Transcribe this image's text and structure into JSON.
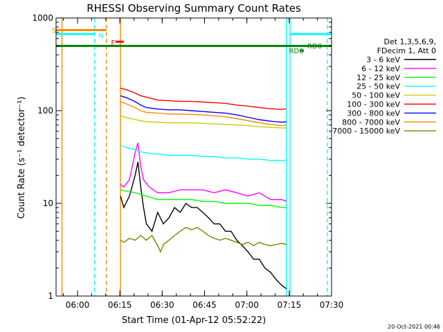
{
  "chart_data": {
    "type": "line",
    "title": "RHESSI Observing Summary Count Rates",
    "xlabel": "Start Time (01-Apr-12 05:52:22)",
    "ylabel": "Count Rate (s⁻¹ detector⁻¹)",
    "yscale": "log",
    "ylim": [
      1,
      1000
    ],
    "xlim_minutes": [
      0,
      97.6
    ],
    "x_ticks": [
      {
        "label": "06:00",
        "t": 7.6
      },
      {
        "label": "06:15",
        "t": 22.6
      },
      {
        "label": "06:30",
        "t": 37.6
      },
      {
        "label": "06:45",
        "t": 52.6
      },
      {
        "label": "07:00",
        "t": 67.6
      },
      {
        "label": "07:15",
        "t": 82.6
      },
      {
        "label": "07:30",
        "t": 97.6
      }
    ],
    "y_ticks": [
      {
        "label": "1",
        "v": 1
      },
      {
        "label": "10",
        "v": 10
      },
      {
        "label": "100",
        "v": 100
      },
      {
        "label": "1000",
        "v": 1000
      }
    ],
    "legend_header": [
      "Det 1,3,5,6,9,",
      "FDecim 1, Att 0"
    ],
    "series": [
      {
        "name": "3 - 6 keV",
        "color": "#000000",
        "points": [
          [
            22.8,
            12
          ],
          [
            24,
            9
          ],
          [
            26,
            12
          ],
          [
            28,
            20
          ],
          [
            29,
            28
          ],
          [
            30,
            15
          ],
          [
            31,
            9
          ],
          [
            32,
            6
          ],
          [
            34,
            5
          ],
          [
            36,
            8
          ],
          [
            38,
            6
          ],
          [
            40,
            7
          ],
          [
            42,
            9
          ],
          [
            44,
            8
          ],
          [
            46,
            10
          ],
          [
            48,
            9
          ],
          [
            50,
            9
          ],
          [
            52,
            8
          ],
          [
            54,
            7
          ],
          [
            56,
            6
          ],
          [
            58,
            6
          ],
          [
            60,
            5
          ],
          [
            62,
            5
          ],
          [
            64,
            4
          ],
          [
            66,
            3.5
          ],
          [
            68,
            3
          ],
          [
            70,
            2.5
          ],
          [
            72,
            2.5
          ],
          [
            74,
            2
          ],
          [
            76,
            1.8
          ],
          [
            78,
            1.5
          ],
          [
            80,
            1.3
          ],
          [
            81.6,
            1.2
          ]
        ]
      },
      {
        "name": "6 - 12 keV",
        "color": "#ff00ff",
        "points": [
          [
            22.8,
            16
          ],
          [
            24,
            15
          ],
          [
            26,
            18
          ],
          [
            28,
            35
          ],
          [
            29,
            45
          ],
          [
            30,
            25
          ],
          [
            31,
            18
          ],
          [
            33,
            15
          ],
          [
            36,
            13
          ],
          [
            40,
            13
          ],
          [
            44,
            14
          ],
          [
            48,
            14
          ],
          [
            52,
            14
          ],
          [
            56,
            13
          ],
          [
            60,
            14
          ],
          [
            64,
            13
          ],
          [
            68,
            12
          ],
          [
            72,
            13
          ],
          [
            76,
            11
          ],
          [
            80,
            11
          ],
          [
            81.6,
            10.5
          ]
        ]
      },
      {
        "name": "12 - 25 keV",
        "color": "#00ff00",
        "points": [
          [
            22.8,
            14
          ],
          [
            25,
            13.5
          ],
          [
            28,
            13
          ],
          [
            32,
            12
          ],
          [
            36,
            11
          ],
          [
            40,
            11
          ],
          [
            44,
            11
          ],
          [
            48,
            11
          ],
          [
            52,
            10.5
          ],
          [
            56,
            10.5
          ],
          [
            60,
            10
          ],
          [
            64,
            10
          ],
          [
            68,
            10
          ],
          [
            72,
            9.5
          ],
          [
            76,
            9.5
          ],
          [
            80,
            9
          ],
          [
            81.6,
            9
          ]
        ]
      },
      {
        "name": "25 - 50 keV",
        "color": "#00ffff",
        "points": [
          [
            22.8,
            42
          ],
          [
            25,
            40
          ],
          [
            28,
            38
          ],
          [
            30,
            36
          ],
          [
            32,
            35
          ],
          [
            36,
            34
          ],
          [
            40,
            33
          ],
          [
            44,
            33
          ],
          [
            48,
            33
          ],
          [
            52,
            32
          ],
          [
            56,
            32
          ],
          [
            60,
            31
          ],
          [
            64,
            31
          ],
          [
            68,
            30
          ],
          [
            72,
            30
          ],
          [
            76,
            29
          ],
          [
            80,
            29
          ],
          [
            81.6,
            29
          ]
        ]
      },
      {
        "name": "50 - 100 keV",
        "color": "#cccc00",
        "points": [
          [
            22.8,
            88
          ],
          [
            25,
            84
          ],
          [
            28,
            80
          ],
          [
            32,
            76
          ],
          [
            36,
            75
          ],
          [
            40,
            74
          ],
          [
            44,
            74
          ],
          [
            48,
            74
          ],
          [
            52,
            73
          ],
          [
            56,
            72
          ],
          [
            60,
            71
          ],
          [
            64,
            70
          ],
          [
            68,
            69
          ],
          [
            72,
            67
          ],
          [
            76,
            66
          ],
          [
            80,
            65
          ],
          [
            81.6,
            65
          ]
        ]
      },
      {
        "name": "100 - 300 keV",
        "color": "#ff0000",
        "points": [
          [
            22.8,
            175
          ],
          [
            25,
            168
          ],
          [
            28,
            155
          ],
          [
            30,
            145
          ],
          [
            32,
            140
          ],
          [
            36,
            130
          ],
          [
            40,
            128
          ],
          [
            44,
            126
          ],
          [
            48,
            126
          ],
          [
            52,
            124
          ],
          [
            56,
            122
          ],
          [
            60,
            120
          ],
          [
            64,
            115
          ],
          [
            68,
            112
          ],
          [
            72,
            108
          ],
          [
            76,
            105
          ],
          [
            80,
            103
          ],
          [
            81.6,
            105
          ]
        ]
      },
      {
        "name": "300 - 800 keV",
        "color": "#0000ff",
        "points": [
          [
            22.8,
            145
          ],
          [
            25,
            138
          ],
          [
            28,
            125
          ],
          [
            30,
            115
          ],
          [
            32,
            108
          ],
          [
            36,
            104
          ],
          [
            40,
            102
          ],
          [
            44,
            102
          ],
          [
            48,
            100
          ],
          [
            52,
            98
          ],
          [
            56,
            96
          ],
          [
            60,
            94
          ],
          [
            64,
            90
          ],
          [
            68,
            85
          ],
          [
            72,
            80
          ],
          [
            76,
            77
          ],
          [
            80,
            75
          ],
          [
            81.6,
            76
          ]
        ]
      },
      {
        "name": "800 - 7000 keV",
        "color": "#ff8800",
        "points": [
          [
            22.8,
            125
          ],
          [
            25,
            118
          ],
          [
            28,
            108
          ],
          [
            30,
            100
          ],
          [
            32,
            96
          ],
          [
            36,
            94
          ],
          [
            40,
            92
          ],
          [
            44,
            92
          ],
          [
            48,
            91
          ],
          [
            52,
            90
          ],
          [
            56,
            88
          ],
          [
            60,
            86
          ],
          [
            64,
            82
          ],
          [
            68,
            78
          ],
          [
            72,
            74
          ],
          [
            76,
            71
          ],
          [
            80,
            69
          ],
          [
            81.6,
            70
          ]
        ]
      },
      {
        "name": "7000 - 15000 keV",
        "color": "#808000",
        "points": [
          [
            22.8,
            4
          ],
          [
            24,
            3.8
          ],
          [
            26,
            4.2
          ],
          [
            28,
            4
          ],
          [
            30,
            4.5
          ],
          [
            32,
            4
          ],
          [
            34,
            4.5
          ],
          [
            36,
            3.5
          ],
          [
            37,
            3
          ],
          [
            38,
            3.6
          ],
          [
            40,
            4
          ],
          [
            42,
            4.5
          ],
          [
            44,
            5
          ],
          [
            46,
            5.5
          ],
          [
            48,
            5.2
          ],
          [
            50,
            5.5
          ],
          [
            52,
            5
          ],
          [
            54,
            4.5
          ],
          [
            56,
            4.2
          ],
          [
            58,
            4
          ],
          [
            60,
            4.2
          ],
          [
            62,
            4
          ],
          [
            64,
            3.8
          ],
          [
            66,
            3.6
          ],
          [
            68,
            3.8
          ],
          [
            70,
            3.5
          ],
          [
            72,
            3.8
          ],
          [
            74,
            3.6
          ],
          [
            76,
            3.5
          ],
          [
            78,
            3.6
          ],
          [
            80,
            3.7
          ],
          [
            81.6,
            3.6
          ]
        ]
      }
    ],
    "annotations": [
      {
        "text": "S",
        "color": "#ff8800",
        "t": -1.5,
        "v": 740
      },
      {
        "text": "N",
        "color": "#00ffff",
        "t": 15,
        "v": 650
      },
      {
        "text": "F",
        "color": "#ff0000",
        "t": 19.5,
        "v": 550
      },
      {
        "text": "RD0",
        "color": "#008000",
        "t": 89,
        "v": 505
      },
      {
        "text": "RD6",
        "color": "#008000",
        "t": 82.5,
        "v": 445
      }
    ],
    "state_bars": [
      {
        "name": "saa",
        "color": "#ff8800",
        "t0": 0,
        "t1": 17.8,
        "v": 740
      },
      {
        "name": "night-1",
        "color": "#00ffff",
        "t0": 0,
        "t1": 13.7,
        "v": 670
      },
      {
        "name": "night-2",
        "color": "#00ffff",
        "t0": 82.9,
        "t1": 97.6,
        "v": 670
      },
      {
        "name": "flare",
        "color": "#ff0000",
        "t0": 21,
        "t1": 24,
        "v": 555
      },
      {
        "name": "decimation-rd0",
        "color": "#008000",
        "t0": 0,
        "t1": 97.6,
        "v": 500
      },
      {
        "name": "decimation-rd6",
        "color": "#008000",
        "t0": 86.4,
        "t1": 87.8,
        "v": 445
      }
    ],
    "vlines": [
      {
        "t": 2.1,
        "color": "#ff8800",
        "style": "solid"
      },
      {
        "t": 13.7,
        "color": "#00ffff",
        "style": "dashed"
      },
      {
        "t": 17.8,
        "color": "#ff8800",
        "style": "dashed"
      },
      {
        "t": 22.8,
        "color": "#ff8800",
        "style": "solid"
      },
      {
        "t": 81.6,
        "color": "#00ffff",
        "style": "solid"
      },
      {
        "t": 82.9,
        "color": "#00ffff",
        "style": "solid"
      },
      {
        "t": 96.1,
        "color": "#00ffff",
        "style": "dashed"
      }
    ]
  },
  "footer": {
    "timestamp": "20-Oct-2021 00:46"
  }
}
